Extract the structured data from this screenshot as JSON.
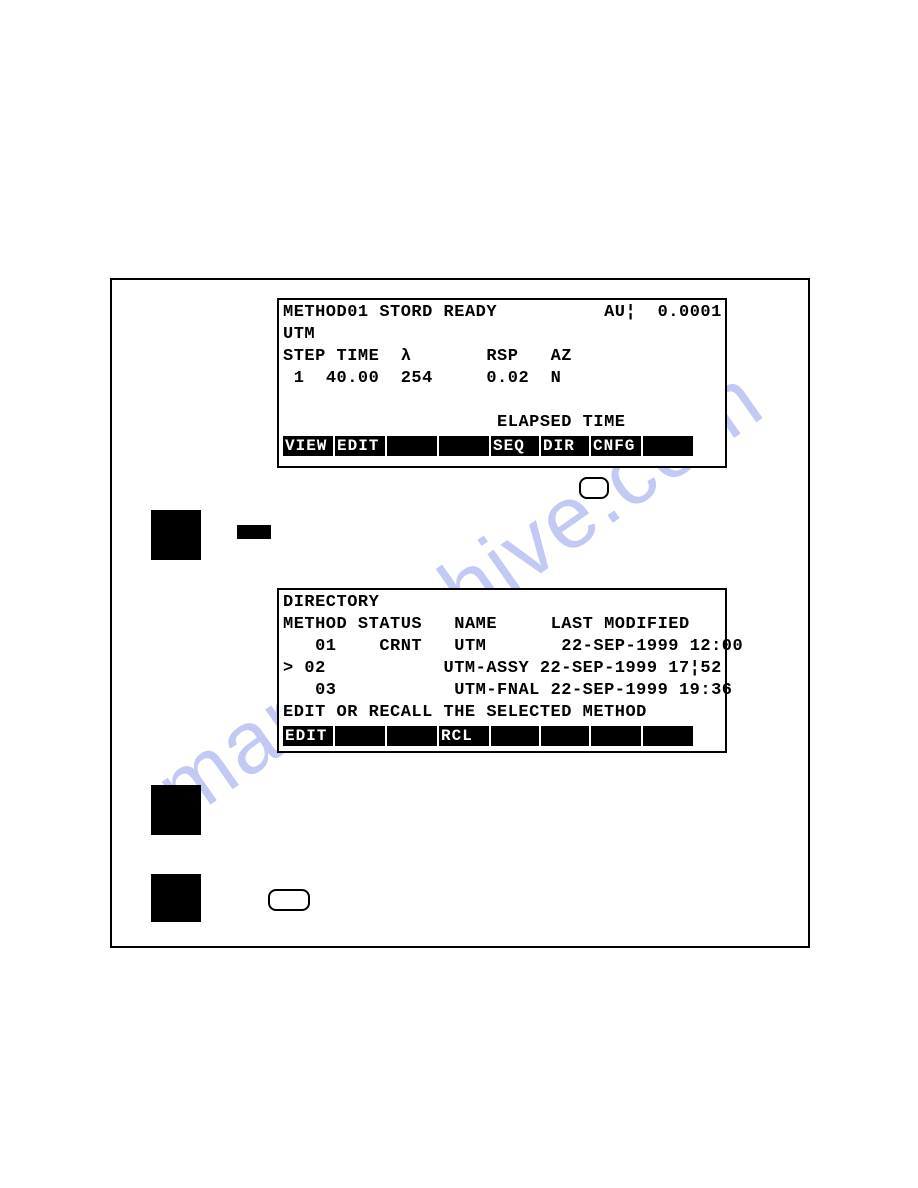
{
  "watermark_text": "manualshive.com",
  "screen1": {
    "line1_method": "METHOD01",
    "line1_stord": "STORD",
    "line1_ready": "READY",
    "line1_au_label": "AU¦",
    "line1_au_value": "0.0001",
    "line2_utm": "UTM",
    "line3_step": "STEP",
    "line3_time": "TIME",
    "line3_lambda": "λ",
    "line3_rsp": "RSP",
    "line3_az": "AZ",
    "line4_step_val": "1",
    "line4_time_val": "40.00",
    "line4_lambda_val": "254",
    "line4_rsp_val": "0.02",
    "line4_az_val": "N",
    "line6_elapsed": "ELAPSED TIME",
    "softkeys": {
      "k1": "VIEW",
      "k2": "EDIT",
      "k3": "",
      "k4": "",
      "k5": "SEQ",
      "k6": "DIR",
      "k7": "CNFG",
      "k8": ""
    }
  },
  "screen2": {
    "line1_title": "DIRECTORY",
    "line2_method": "METHOD",
    "line2_status": "STATUS",
    "line2_name": "NAME",
    "line2_lastmod": "LAST MODIFIED",
    "rows": [
      {
        "cursor": " ",
        "id": "01",
        "status": "CRNT",
        "name": "UTM     ",
        "date": "22-SEP-1999",
        "time": "12:00"
      },
      {
        "cursor": ">",
        "id": "02",
        "status": "    ",
        "name": "UTM-ASSY",
        "date": "22-SEP-1999",
        "time": "17¦52"
      },
      {
        "cursor": " ",
        "id": "03",
        "status": "    ",
        "name": "UTM-FNAL",
        "date": "22-SEP-1999",
        "time": "19:36"
      }
    ],
    "line6_prompt": "EDIT OR RECALL THE SELECTED METHOD",
    "softkeys": {
      "k1": "EDIT",
      "k2": "",
      "k3": "",
      "k4": "RCL",
      "k5": "",
      "k6": "",
      "k7": "",
      "k8": ""
    }
  },
  "colors": {
    "border": "#000000",
    "bg": "#ffffff",
    "softkey_bg": "#000000",
    "softkey_fg": "#ffffff",
    "watermark": "rgba(80,100,220,0.35)"
  }
}
